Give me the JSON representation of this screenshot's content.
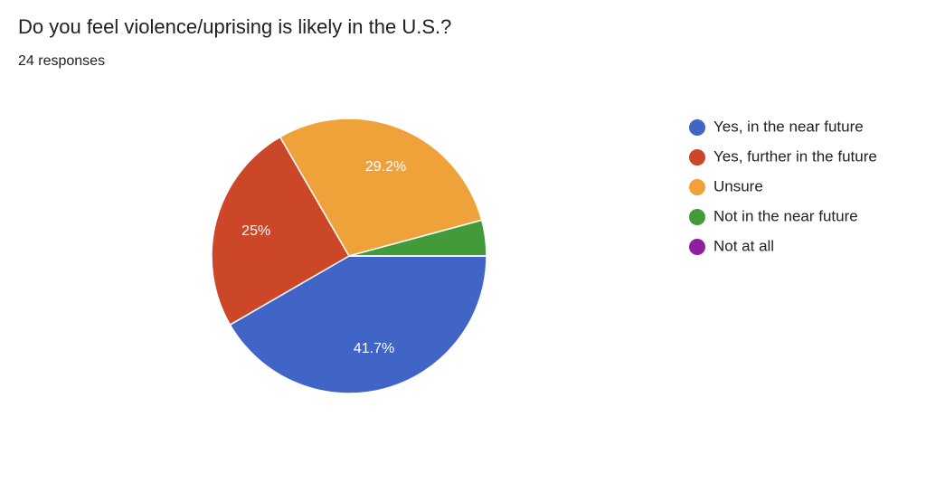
{
  "chart_data": {
    "type": "pie",
    "title": "Do you feel violence/uprising is likely in the U.S.?",
    "subtitle": "24 responses",
    "categories": [
      "Yes, in the near future",
      "Yes, further in the future",
      "Unsure",
      "Not in the near future",
      "Not at all"
    ],
    "values": [
      41.7,
      25,
      29.2,
      4.2,
      0
    ],
    "value_labels": [
      "41.7%",
      "25%",
      "29.2%",
      null,
      null
    ],
    "colors": [
      "#4065c7",
      "#cc4628",
      "#f0a23a",
      "#429a39",
      "#8f1fa0"
    ]
  }
}
